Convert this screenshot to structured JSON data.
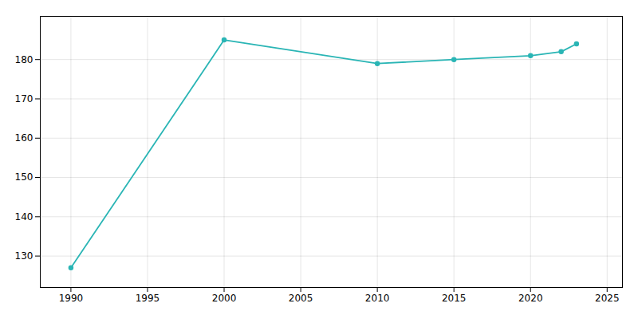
{
  "chart_data": {
    "type": "line",
    "x": [
      1990,
      2000,
      2010,
      2015,
      2020,
      2022,
      2023
    ],
    "values": [
      127,
      185,
      179,
      180,
      181,
      182,
      184
    ],
    "color": "#2ab5b5",
    "marker": "circle",
    "xlim": [
      1988,
      2026
    ],
    "ylim": [
      122,
      191
    ],
    "xticks": [
      1990,
      1995,
      2000,
      2005,
      2010,
      2015,
      2020,
      2025
    ],
    "yticks": [
      130,
      140,
      150,
      160,
      170,
      180
    ],
    "grid": true
  }
}
